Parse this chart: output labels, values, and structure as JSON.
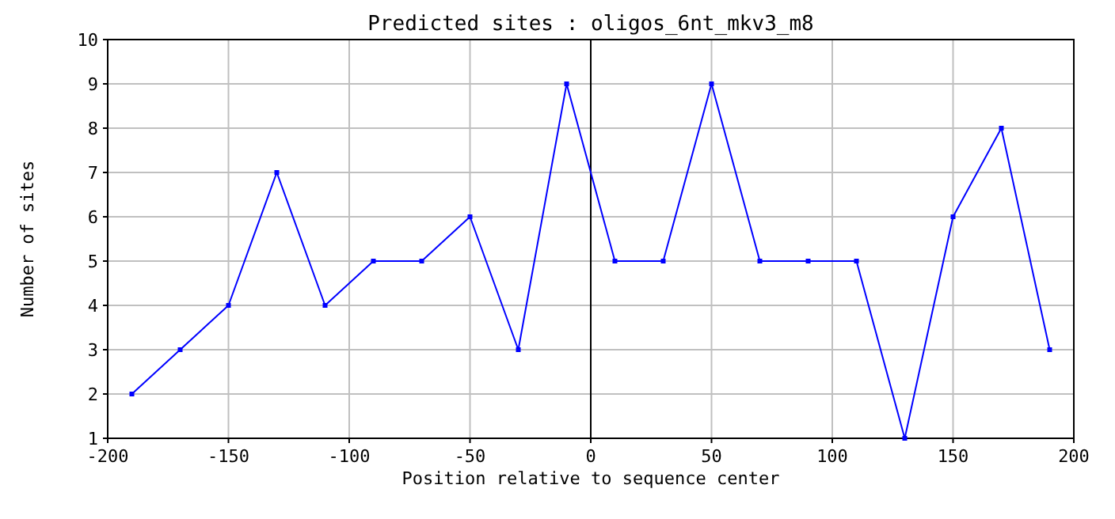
{
  "chart_data": {
    "type": "line",
    "title": "Predicted sites : oligos_6nt_mkv3_m8",
    "xlabel": "Position relative to sequence center",
    "ylabel": "Number of sites",
    "x": [
      -190,
      -170,
      -150,
      -130,
      -110,
      -90,
      -70,
      -50,
      -30,
      -10,
      10,
      30,
      50,
      70,
      90,
      110,
      130,
      150,
      170,
      190
    ],
    "series": [
      {
        "color": "#0000ff",
        "values": [
          2,
          3,
          4,
          7,
          4,
          5,
          5,
          6,
          3,
          9,
          5,
          5,
          9,
          5,
          5,
          5,
          1,
          6,
          8,
          3
        ]
      }
    ],
    "xlim": [
      -200,
      200
    ],
    "xticks": [
      -200,
      -150,
      -100,
      -50,
      0,
      50,
      100,
      150,
      200
    ],
    "ylim": [
      1,
      10
    ],
    "yticks": [
      1,
      2,
      3,
      4,
      5,
      6,
      7,
      8,
      9,
      10
    ],
    "grid": true,
    "marker": "square",
    "line_style": "solid",
    "ref_lines": [
      {
        "axis": "x",
        "value": 0,
        "color": "#000000"
      }
    ]
  }
}
